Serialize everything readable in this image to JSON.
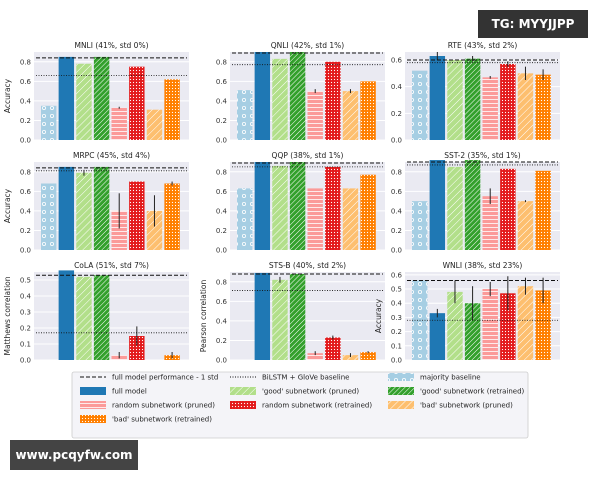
{
  "chart_data": [
    {
      "type": "bar",
      "title": "MNLI (41%, std 0%)",
      "ylabel": "Accuracy",
      "ylim": [
        0,
        0.9
      ],
      "yticks": [
        0,
        0.2,
        0.4,
        0.6,
        0.8
      ],
      "values": [
        0.35,
        0.85,
        0.78,
        0.85,
        0.33,
        0.75,
        0.31,
        0.62
      ],
      "errors": [
        0,
        0,
        0,
        0,
        0.01,
        0,
        0,
        0
      ],
      "full_model_minus_std": 0.84,
      "bilstm_baseline": 0.66
    },
    {
      "type": "bar",
      "title": "QNLI (42%, std 1%)",
      "ylabel": "",
      "ylim": [
        0,
        0.9
      ],
      "yticks": [
        0,
        0.2,
        0.4,
        0.6,
        0.8
      ],
      "values": [
        0.51,
        0.9,
        0.83,
        0.9,
        0.5,
        0.8,
        0.5,
        0.6
      ],
      "errors": [
        0,
        0,
        0,
        0,
        0.02,
        0,
        0.02,
        0
      ],
      "full_model_minus_std": 0.89,
      "bilstm_baseline": 0.77
    },
    {
      "type": "bar",
      "title": "RTE (43%, std 2%)",
      "ylabel": "",
      "ylim": [
        0,
        0.66
      ],
      "yticks": [
        0,
        0.2,
        0.4,
        0.6
      ],
      "values": [
        0.52,
        0.63,
        0.6,
        0.61,
        0.47,
        0.57,
        0.5,
        0.49
      ],
      "errors": [
        0,
        0.03,
        0,
        0.02,
        0.01,
        0.02,
        0.05,
        0.04
      ],
      "full_model_minus_std": 0.6,
      "bilstm_baseline": 0.58
    },
    {
      "type": "bar",
      "title": "MRPC (45%, std 4%)",
      "ylabel": "Accuracy",
      "ylim": [
        0,
        0.9
      ],
      "yticks": [
        0,
        0.2,
        0.4,
        0.6,
        0.8
      ],
      "values": [
        0.68,
        0.85,
        0.79,
        0.85,
        0.4,
        0.7,
        0.4,
        0.68
      ],
      "errors": [
        0,
        0,
        0.03,
        0,
        0.18,
        0,
        0.16,
        0.02
      ],
      "full_model_minus_std": 0.84,
      "bilstm_baseline": 0.81
    },
    {
      "type": "bar",
      "title": "QQP (38%, std 1%)",
      "ylabel": "",
      "ylim": [
        0,
        0.9
      ],
      "yticks": [
        0,
        0.2,
        0.4,
        0.6,
        0.8
      ],
      "values": [
        0.63,
        0.9,
        0.86,
        0.9,
        0.63,
        0.85,
        0.63,
        0.77
      ],
      "errors": [
        0,
        0,
        0,
        0,
        0,
        0,
        0,
        0
      ],
      "full_model_minus_std": 0.89,
      "bilstm_baseline": 0.85
    },
    {
      "type": "bar",
      "title": "SST-2 (35%, std 1%)",
      "ylabel": "",
      "ylim": [
        0,
        0.9
      ],
      "yticks": [
        0,
        0.2,
        0.4,
        0.6,
        0.8
      ],
      "values": [
        0.5,
        0.92,
        0.85,
        0.92,
        0.55,
        0.83,
        0.5,
        0.81
      ],
      "errors": [
        0,
        0,
        0,
        0,
        0.08,
        0,
        0.01,
        0
      ],
      "full_model_minus_std": 0.9,
      "bilstm_baseline": 0.87
    },
    {
      "type": "bar",
      "title": "CoLA (51%, std 7%)",
      "ylabel": "Matthews correlation",
      "ylim": [
        0,
        0.55
      ],
      "yticks": [
        0,
        0.1,
        0.2,
        0.3,
        0.4,
        0.5
      ],
      "values": [
        0.0,
        0.56,
        0.52,
        0.53,
        0.03,
        0.15,
        0.0,
        0.03
      ],
      "errors": [
        0,
        0,
        0,
        0,
        0.02,
        0.06,
        0,
        0.02
      ],
      "full_model_minus_std": 0.53,
      "bilstm_baseline": 0.17
    },
    {
      "type": "bar",
      "title": "STS-B (40%, std 2%)",
      "ylabel": "Pearson correlation",
      "ylim": [
        0,
        0.9
      ],
      "yticks": [
        0,
        0.2,
        0.4,
        0.6,
        0.8
      ],
      "values": [
        0.0,
        0.89,
        0.82,
        0.88,
        0.07,
        0.23,
        0.05,
        0.08
      ],
      "errors": [
        0,
        0,
        0.03,
        0,
        0.02,
        0.02,
        0.02,
        0.01
      ],
      "full_model_minus_std": 0.88,
      "bilstm_baseline": 0.71
    },
    {
      "type": "bar",
      "title": "WNLI (38%, std 23%)",
      "ylabel": "Accuracy",
      "ylim": [
        0,
        0.62
      ],
      "yticks": [
        0,
        0.1,
        0.2,
        0.3,
        0.4,
        0.5,
        0.6
      ],
      "values": [
        0.56,
        0.33,
        0.48,
        0.4,
        0.5,
        0.47,
        0.52,
        0.49
      ],
      "errors": [
        0,
        0.03,
        0.08,
        0.12,
        0.05,
        0.12,
        0.06,
        0.09
      ],
      "full_model_minus_std": 0.56,
      "bilstm_baseline": 0.28
    }
  ],
  "series": [
    {
      "name": "majority baseline",
      "color": "#a6cee3",
      "pattern": "stars"
    },
    {
      "name": "full model",
      "color": "#1f78b4",
      "pattern": "solid"
    },
    {
      "name": "'good' subnetwork (pruned)",
      "color": "#b2df8a",
      "pattern": "diag-light"
    },
    {
      "name": "'good' subnetwork (retrained)",
      "color": "#33a02c",
      "pattern": "diag-dense"
    },
    {
      "name": "random subnetwork (pruned)",
      "color": "#fb9a99",
      "pattern": "hlines"
    },
    {
      "name": "random subnetwork (retrained)",
      "color": "#e31a1c",
      "pattern": "dots"
    },
    {
      "name": "'bad' subnetwork (pruned)",
      "color": "#fdbf6f",
      "pattern": "diag-light"
    },
    {
      "name": "'bad' subnetwork (retrained)",
      "color": "#ff7f00",
      "pattern": "dots"
    }
  ],
  "legend": {
    "placement": "bottom",
    "full_model_line": "full model performance - 1 std",
    "bilstm_line": "BiLSTM + GloVe baseline"
  },
  "watermarks": {
    "top": "TG: MYYJJPP",
    "bottom": "www.pcqyfw.com"
  }
}
